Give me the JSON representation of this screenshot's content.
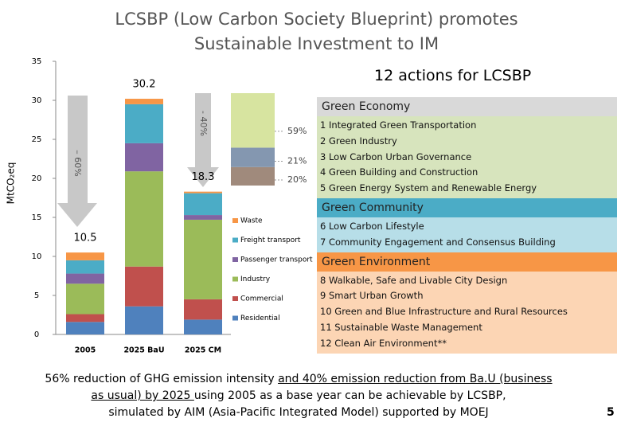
{
  "title_lines": [
    "LCSBP (Low Carbon Society Blueprint) promotes",
    "Sustainable Investment to IM"
  ],
  "chart_data": [
    {
      "type": "stacked-bar",
      "y_label": "MtCO₂eq",
      "categories": [
        "2005",
        "2025 BaU",
        "2025 CM"
      ],
      "series": [
        {
          "name": "Residential",
          "color": "#4f81bd",
          "values": [
            1.6,
            3.6,
            1.9
          ]
        },
        {
          "name": "Commercial",
          "color": "#c0504d",
          "values": [
            1.0,
            5.1,
            2.6
          ]
        },
        {
          "name": "Industry",
          "color": "#9bbb59",
          "values": [
            3.9,
            12.2,
            10.2
          ]
        },
        {
          "name": "Passenger transport",
          "color": "#8064a2",
          "values": [
            1.3,
            3.6,
            0.6
          ]
        },
        {
          "name": "Freight transport",
          "color": "#4bacc6",
          "values": [
            1.7,
            5.0,
            2.8
          ]
        },
        {
          "name": "Waste",
          "color": "#f79646",
          "values": [
            1.0,
            0.7,
            0.2
          ]
        }
      ],
      "total_labels": [
        "10.5",
        "30.2",
        "18.3"
      ],
      "annotations": [
        "– 60%",
        "- 40%"
      ],
      "ylim": [
        0,
        35
      ],
      "yticks": [
        0,
        5,
        10,
        15,
        20,
        25,
        30,
        35
      ]
    },
    {
      "type": "stacked-share",
      "series": [
        {
          "color": "#a08a7c",
          "values": [
            20
          ]
        },
        {
          "color": "#8497b0",
          "values": [
            21
          ]
        },
        {
          "color": "#d7e4a0",
          "values": [
            59
          ]
        }
      ],
      "value_labels": [
        "20%",
        "21%",
        "59%"
      ]
    }
  ],
  "actions": {
    "heading": "12 actions for LCSBP",
    "groups": [
      {
        "name": "Green Economy",
        "color": "#d9d9d9",
        "body_color": "#d7e4bd",
        "items": [
          "1 Integrated Green Transportation",
          "2 Green Industry",
          "3 Low Carbon Urban Governance",
          "4 Green Building and Construction",
          "5 Green Energy System and Renewable Energy"
        ]
      },
      {
        "name": "Green Community",
        "color": "#4bacc6",
        "body_color": "#b7dee8",
        "items": [
          "6 Low Carbon Lifestyle",
          "7 Community Engagement and Consensus Building"
        ]
      },
      {
        "name": "Green Environment",
        "color": "#f79646",
        "body_color": "#fcd5b4",
        "items": [
          "8 Walkable, Safe and Livable City Design",
          "9 Smart Urban Growth",
          "10 Green and Blue Infrastructure and Rural Resources",
          "11 Sustainable Waste Management",
          "12 Clean Air Environment**"
        ]
      }
    ]
  },
  "footer": [
    [
      {
        "text": "56% reduction of GHG emission intensity ",
        "underline": false
      },
      {
        "text": "and 40% emission reduction from Ba.U (business",
        "underline": true
      }
    ],
    [
      {
        "text": "as usual) by 2025 ",
        "underline": true
      },
      {
        "text": "using 2005 as a base year can be achievable by LCSBP,",
        "underline": false
      }
    ],
    [
      {
        "text": "simulated by AIM (Asia-Pacific Integrated Model) supported by MOEJ",
        "underline": false
      }
    ]
  ],
  "page_number": "5"
}
